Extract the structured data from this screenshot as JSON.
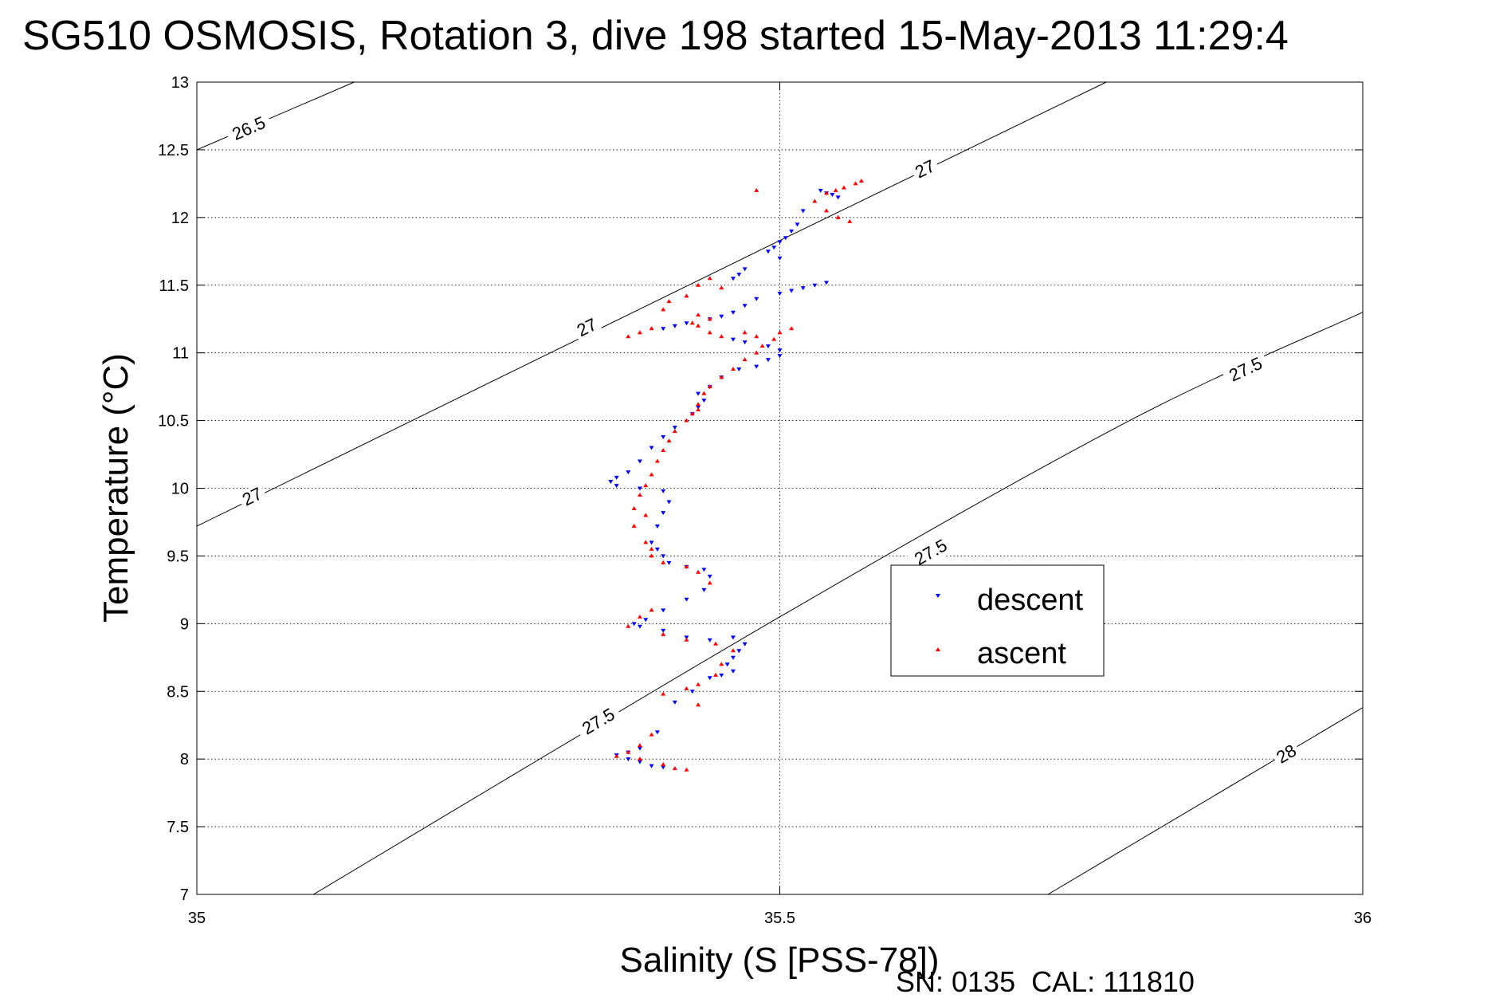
{
  "chart_data": {
    "type": "scatter",
    "title": "SG510 OSMOSIS, Rotation 3, dive 198 started 15-May-2013 11:29:4",
    "xlabel": "Salinity (S [PSS-78])",
    "ylabel": "Temperature (°C)",
    "footer": "SN: 0135  CAL: 111810",
    "xlim": [
      35,
      36
    ],
    "ylim": [
      7,
      13
    ],
    "x_ticks": [
      35,
      35.5,
      36
    ],
    "x_tick_labels": [
      "35",
      "35.5",
      "36"
    ],
    "y_ticks": [
      7,
      7.5,
      8,
      8.5,
      9,
      9.5,
      10,
      10.5,
      11,
      11.5,
      12,
      12.5,
      13
    ],
    "y_tick_labels": [
      "7",
      "7.5",
      "8",
      "8.5",
      "9",
      "9.5",
      "10",
      "10.5",
      "11",
      "11.5",
      "12",
      "12.5",
      "13"
    ],
    "grid": true,
    "legend_position": "center-right",
    "density_contours": [
      {
        "level": "26.5",
        "points": [
          [
            35,
            12.5
          ],
          [
            35.135,
            13
          ]
        ],
        "labels": [
          [
            35.045,
            12.65
          ]
        ]
      },
      {
        "level": "27",
        "points": [
          [
            35,
            9.72
          ],
          [
            35.5,
            11.83
          ],
          [
            35.78,
            13
          ]
        ],
        "labels": [
          [
            35.048,
            9.93
          ],
          [
            35.335,
            11.18
          ],
          [
            35.625,
            12.35
          ]
        ]
      },
      {
        "level": "27.5",
        "points": [
          [
            35.1,
            7
          ],
          [
            35.5,
            9.05
          ],
          [
            35.8,
            10.5
          ],
          [
            36,
            11.3
          ]
        ],
        "labels": [
          [
            35.345,
            8.27
          ],
          [
            35.63,
            9.52
          ],
          [
            35.9,
            10.87
          ]
        ]
      },
      {
        "level": "28",
        "points": [
          [
            35.73,
            7
          ],
          [
            36,
            8.38
          ]
        ],
        "labels": [
          [
            35.935,
            8.03
          ]
        ]
      }
    ],
    "series": [
      {
        "name": "descent",
        "color": "#0000ff",
        "marker": "triangle-down",
        "points": [
          [
            35.535,
            12.2
          ],
          [
            35.54,
            12.18
          ],
          [
            35.545,
            12.17
          ],
          [
            35.55,
            12.15
          ],
          [
            35.52,
            12.05
          ],
          [
            35.515,
            11.95
          ],
          [
            35.51,
            11.9
          ],
          [
            35.505,
            11.85
          ],
          [
            35.5,
            11.82
          ],
          [
            35.495,
            11.78
          ],
          [
            35.49,
            11.75
          ],
          [
            35.5,
            11.7
          ],
          [
            35.47,
            11.62
          ],
          [
            35.465,
            11.58
          ],
          [
            35.46,
            11.55
          ],
          [
            35.54,
            11.52
          ],
          [
            35.53,
            11.5
          ],
          [
            35.52,
            11.48
          ],
          [
            35.51,
            11.46
          ],
          [
            35.5,
            11.44
          ],
          [
            35.48,
            11.4
          ],
          [
            35.47,
            11.35
          ],
          [
            35.46,
            11.3
          ],
          [
            35.45,
            11.27
          ],
          [
            35.44,
            11.25
          ],
          [
            35.42,
            11.22
          ],
          [
            35.41,
            11.2
          ],
          [
            35.4,
            11.18
          ],
          [
            35.46,
            11.1
          ],
          [
            35.47,
            11.08
          ],
          [
            35.49,
            11.05
          ],
          [
            35.5,
            11.02
          ],
          [
            35.5,
            10.98
          ],
          [
            35.49,
            10.95
          ],
          [
            35.48,
            10.9
          ],
          [
            35.465,
            10.88
          ],
          [
            35.45,
            10.82
          ],
          [
            35.44,
            10.75
          ],
          [
            35.43,
            10.7
          ],
          [
            35.435,
            10.65
          ],
          [
            35.43,
            10.6
          ],
          [
            35.425,
            10.55
          ],
          [
            35.41,
            10.45
          ],
          [
            35.4,
            10.38
          ],
          [
            35.39,
            10.3
          ],
          [
            35.38,
            10.2
          ],
          [
            35.37,
            10.12
          ],
          [
            35.36,
            10.08
          ],
          [
            35.355,
            10.05
          ],
          [
            35.36,
            10.02
          ],
          [
            35.38,
            10.0
          ],
          [
            35.4,
            9.98
          ],
          [
            35.405,
            9.9
          ],
          [
            35.4,
            9.82
          ],
          [
            35.395,
            9.72
          ],
          [
            35.39,
            9.6
          ],
          [
            35.395,
            9.55
          ],
          [
            35.4,
            9.5
          ],
          [
            35.405,
            9.45
          ],
          [
            35.42,
            9.42
          ],
          [
            35.435,
            9.4
          ],
          [
            35.44,
            9.35
          ],
          [
            35.435,
            9.25
          ],
          [
            35.42,
            9.18
          ],
          [
            35.4,
            9.1
          ],
          [
            35.385,
            9.03
          ],
          [
            35.375,
            9.0
          ],
          [
            35.38,
            8.98
          ],
          [
            35.4,
            8.95
          ],
          [
            35.42,
            8.9
          ],
          [
            35.44,
            8.88
          ],
          [
            35.46,
            8.9
          ],
          [
            35.47,
            8.85
          ],
          [
            35.465,
            8.8
          ],
          [
            35.46,
            8.75
          ],
          [
            35.455,
            8.7
          ],
          [
            35.46,
            8.65
          ],
          [
            35.45,
            8.62
          ],
          [
            35.44,
            8.6
          ],
          [
            35.425,
            8.5
          ],
          [
            35.41,
            8.42
          ],
          [
            35.395,
            8.2
          ],
          [
            35.38,
            8.08
          ],
          [
            35.37,
            8.05
          ],
          [
            35.36,
            8.03
          ],
          [
            35.37,
            8.0
          ],
          [
            35.38,
            7.98
          ],
          [
            35.39,
            7.95
          ],
          [
            35.4,
            7.94
          ]
        ]
      },
      {
        "name": "ascent",
        "color": "#ff0000",
        "marker": "triangle-up",
        "points": [
          [
            35.57,
            12.27
          ],
          [
            35.565,
            12.25
          ],
          [
            35.555,
            12.22
          ],
          [
            35.548,
            12.2
          ],
          [
            35.54,
            12.18
          ],
          [
            35.48,
            12.2
          ],
          [
            35.53,
            12.12
          ],
          [
            35.54,
            12.05
          ],
          [
            35.55,
            12.0
          ],
          [
            35.56,
            11.97
          ],
          [
            35.44,
            11.55
          ],
          [
            35.43,
            11.5
          ],
          [
            35.45,
            11.48
          ],
          [
            35.42,
            11.42
          ],
          [
            35.405,
            11.38
          ],
          [
            35.4,
            11.32
          ],
          [
            35.43,
            11.28
          ],
          [
            35.44,
            11.25
          ],
          [
            35.425,
            11.22
          ],
          [
            35.43,
            11.2
          ],
          [
            35.39,
            11.18
          ],
          [
            35.38,
            11.15
          ],
          [
            35.37,
            11.12
          ],
          [
            35.44,
            11.15
          ],
          [
            35.45,
            11.12
          ],
          [
            35.47,
            11.15
          ],
          [
            35.48,
            11.12
          ],
          [
            35.5,
            11.15
          ],
          [
            35.51,
            11.18
          ],
          [
            35.495,
            11.1
          ],
          [
            35.485,
            11.05
          ],
          [
            35.48,
            11.0
          ],
          [
            35.47,
            10.95
          ],
          [
            35.46,
            10.88
          ],
          [
            35.45,
            10.82
          ],
          [
            35.44,
            10.75
          ],
          [
            35.435,
            10.7
          ],
          [
            35.43,
            10.62
          ],
          [
            35.43,
            10.58
          ],
          [
            35.425,
            10.55
          ],
          [
            35.42,
            10.5
          ],
          [
            35.41,
            10.42
          ],
          [
            35.405,
            10.35
          ],
          [
            35.4,
            10.28
          ],
          [
            35.395,
            10.2
          ],
          [
            35.39,
            10.1
          ],
          [
            35.385,
            10.02
          ],
          [
            35.38,
            9.95
          ],
          [
            35.375,
            9.85
          ],
          [
            35.385,
            9.8
          ],
          [
            35.375,
            9.72
          ],
          [
            35.385,
            9.6
          ],
          [
            35.39,
            9.55
          ],
          [
            35.39,
            9.5
          ],
          [
            35.4,
            9.45
          ],
          [
            35.42,
            9.42
          ],
          [
            35.43,
            9.38
          ],
          [
            35.44,
            9.3
          ],
          [
            35.39,
            9.1
          ],
          [
            35.38,
            9.05
          ],
          [
            35.37,
            8.98
          ],
          [
            35.4,
            8.92
          ],
          [
            35.42,
            8.88
          ],
          [
            35.445,
            8.85
          ],
          [
            35.46,
            8.8
          ],
          [
            35.45,
            8.7
          ],
          [
            35.445,
            8.62
          ],
          [
            35.43,
            8.55
          ],
          [
            35.42,
            8.52
          ],
          [
            35.4,
            8.48
          ],
          [
            35.43,
            8.4
          ],
          [
            35.39,
            8.18
          ],
          [
            35.38,
            8.1
          ],
          [
            35.37,
            8.05
          ],
          [
            35.36,
            8.02
          ],
          [
            35.38,
            8.0
          ],
          [
            35.4,
            7.96
          ],
          [
            35.41,
            7.93
          ],
          [
            35.42,
            7.92
          ]
        ]
      }
    ]
  }
}
